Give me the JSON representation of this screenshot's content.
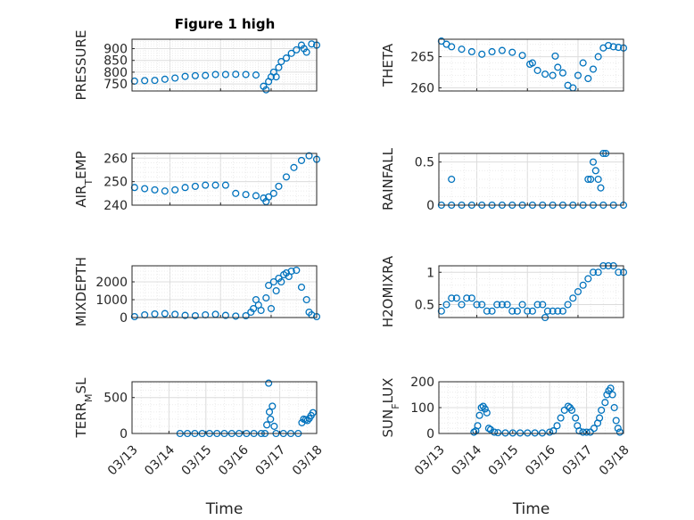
{
  "figure": {
    "title": "Figure 1 high"
  },
  "colors": {
    "marker": "#0072BD",
    "axis": "#262626",
    "grid_major": "#dcdcdc",
    "grid_minor": "#ececec"
  },
  "chart_data": [
    {
      "type": "scatter",
      "ylabel": "PRESSURE",
      "xlabel": "",
      "grid": true,
      "minor_grid": true,
      "xlim": [
        "03/13",
        "03/18"
      ],
      "ylim": [
        720,
        940
      ],
      "yticks": [
        750,
        800,
        850,
        900
      ],
      "x_ticklabels": [],
      "x_range_days": [
        1.25,
        4.9
      ],
      "x": [
        1.3,
        1.5,
        1.7,
        1.9,
        2.1,
        2.3,
        2.5,
        2.7,
        2.9,
        3.1,
        3.3,
        3.5,
        3.7,
        3.85,
        3.9,
        3.95,
        4.0,
        4.05,
        4.1,
        4.15,
        4.2,
        4.3,
        4.4,
        4.5,
        4.6,
        4.65,
        4.7,
        4.8,
        4.9
      ],
      "y": [
        762,
        764,
        765,
        770,
        775,
        782,
        785,
        786,
        790,
        790,
        791,
        790,
        788,
        740,
        725,
        760,
        780,
        800,
        780,
        820,
        845,
        860,
        880,
        895,
        915,
        900,
        885,
        920,
        915
      ]
    },
    {
      "type": "scatter",
      "ylabel": "THETA",
      "xlabel": "",
      "grid": true,
      "minor_grid": true,
      "xlim": [
        "03/13",
        "03/18"
      ],
      "ylim": [
        259.5,
        267.8
      ],
      "yticks": [
        260,
        265
      ],
      "x_ticklabels": [],
      "x_range_days": [
        1.25,
        4.9
      ],
      "x": [
        1.3,
        1.4,
        1.5,
        1.7,
        1.9,
        2.1,
        2.3,
        2.5,
        2.7,
        2.9,
        3.05,
        3.1,
        3.2,
        3.35,
        3.5,
        3.55,
        3.6,
        3.7,
        3.8,
        3.9,
        4.0,
        4.1,
        4.2,
        4.3,
        4.4,
        4.5,
        4.6,
        4.7,
        4.8,
        4.9
      ],
      "y": [
        267.5,
        267.0,
        266.6,
        266.2,
        265.8,
        265.4,
        265.8,
        266.0,
        265.7,
        265.2,
        263.8,
        264.0,
        262.8,
        262.2,
        262.0,
        265.1,
        263.3,
        262.4,
        260.4,
        260.0,
        262.0,
        264.0,
        261.5,
        263.0,
        265.0,
        266.4,
        266.8,
        266.6,
        266.5,
        266.4
      ]
    },
    {
      "type": "scatter",
      "ylabel": "AIR_TEMP",
      "xlabel": "",
      "grid": true,
      "minor_grid": true,
      "xlim": [
        "03/13",
        "03/18"
      ],
      "ylim": [
        240,
        262
      ],
      "yticks": [
        240,
        250,
        260
      ],
      "x_ticklabels": [],
      "x_range_days": [
        1.25,
        4.9
      ],
      "x": [
        1.3,
        1.5,
        1.7,
        1.9,
        2.1,
        2.3,
        2.5,
        2.7,
        2.9,
        3.1,
        3.3,
        3.5,
        3.7,
        3.85,
        3.9,
        3.95,
        4.05,
        4.15,
        4.3,
        4.45,
        4.6,
        4.75,
        4.9
      ],
      "y": [
        247.5,
        247,
        246.5,
        246,
        246.5,
        247.5,
        248,
        248.5,
        248.5,
        248.5,
        245,
        244.5,
        244,
        243,
        241.5,
        243.5,
        245,
        248,
        252,
        256,
        259,
        261,
        259.5
      ]
    },
    {
      "type": "scatter",
      "ylabel": "RAINFALL",
      "xlabel": "",
      "grid": true,
      "minor_grid": true,
      "xlim": [
        "03/13",
        "03/18"
      ],
      "ylim": [
        0,
        0.6
      ],
      "yticks": [
        0,
        0.5
      ],
      "x_ticklabels": [],
      "x_range_days": [
        1.25,
        4.9
      ],
      "x": [
        1.3,
        1.5,
        1.7,
        1.9,
        2.1,
        2.3,
        2.5,
        2.7,
        2.9,
        3.1,
        3.3,
        3.5,
        3.7,
        3.9,
        4.1,
        4.3,
        4.5,
        4.7,
        4.9,
        1.5,
        4.2,
        4.25,
        4.3,
        4.35,
        4.4,
        4.45,
        4.5,
        4.55
      ],
      "y": [
        0,
        0,
        0,
        0,
        0,
        0,
        0,
        0,
        0,
        0,
        0,
        0,
        0,
        0,
        0,
        0,
        0,
        0,
        0,
        0.3,
        0.3,
        0.3,
        0.5,
        0.4,
        0.3,
        0.2,
        0.6,
        0.6
      ]
    },
    {
      "type": "scatter",
      "ylabel": "MIXDEPTH",
      "xlabel": "",
      "grid": true,
      "minor_grid": true,
      "xlim": [
        "03/13",
        "03/18"
      ],
      "ylim": [
        0,
        2900
      ],
      "yticks": [
        0,
        1000,
        2000
      ],
      "x_ticklabels": [],
      "x_range_days": [
        1.25,
        4.9
      ],
      "x": [
        1.3,
        1.5,
        1.7,
        1.9,
        2.1,
        2.3,
        2.5,
        2.7,
        2.9,
        3.1,
        3.3,
        3.5,
        3.6,
        3.65,
        3.7,
        3.75,
        3.8,
        3.9,
        3.95,
        4.0,
        4.05,
        4.1,
        4.15,
        4.2,
        4.25,
        4.3,
        4.35,
        4.4,
        4.5,
        4.6,
        4.7,
        4.75,
        4.8,
        4.9
      ],
      "y": [
        50,
        150,
        200,
        220,
        180,
        120,
        100,
        150,
        180,
        120,
        80,
        100,
        300,
        500,
        1000,
        700,
        400,
        1100,
        1800,
        500,
        2000,
        1500,
        2200,
        2000,
        2400,
        2500,
        2300,
        2600,
        2650,
        1700,
        1000,
        300,
        150,
        50
      ]
    },
    {
      "type": "scatter",
      "ylabel": "H2OMIXRA",
      "xlabel": "",
      "grid": true,
      "minor_grid": true,
      "xlim": [
        "03/13",
        "03/18"
      ],
      "ylim": [
        0.3,
        1.1
      ],
      "yticks": [
        0.5,
        1
      ],
      "x_ticklabels": [],
      "x_range_days": [
        1.25,
        4.9
      ],
      "x": [
        1.3,
        1.4,
        1.5,
        1.6,
        1.7,
        1.8,
        1.9,
        2.0,
        2.1,
        2.2,
        2.3,
        2.4,
        2.5,
        2.6,
        2.7,
        2.8,
        2.9,
        3.0,
        3.1,
        3.2,
        3.3,
        3.35,
        3.4,
        3.5,
        3.6,
        3.7,
        3.8,
        3.9,
        4.0,
        4.1,
        4.2,
        4.3,
        4.4,
        4.5,
        4.6,
        4.7,
        4.8,
        4.9
      ],
      "y": [
        0.4,
        0.5,
        0.6,
        0.6,
        0.5,
        0.6,
        0.6,
        0.5,
        0.5,
        0.4,
        0.4,
        0.5,
        0.5,
        0.5,
        0.4,
        0.4,
        0.5,
        0.4,
        0.4,
        0.5,
        0.5,
        0.3,
        0.4,
        0.4,
        0.4,
        0.4,
        0.5,
        0.6,
        0.7,
        0.8,
        0.9,
        1.0,
        1.0,
        1.1,
        1.1,
        1.1,
        1.0,
        1.0
      ]
    },
    {
      "type": "scatter",
      "ylabel": "TERR_MSL",
      "xlabel": "Time",
      "grid": true,
      "minor_grid": true,
      "xlim": [
        "03/13",
        "03/18"
      ],
      "ylim": [
        0,
        720
      ],
      "yticks": [
        0,
        500
      ],
      "x_ticklabels": [
        "03/13",
        "03/14",
        "03/15",
        "03/16",
        "03/17",
        "03/18"
      ],
      "x_range_days": [
        0,
        5
      ],
      "x": [
        1.3,
        1.5,
        1.7,
        1.9,
        2.1,
        2.3,
        2.5,
        2.7,
        2.9,
        3.1,
        3.3,
        3.5,
        3.6,
        3.65,
        3.7,
        3.72,
        3.75,
        3.8,
        3.85,
        3.9,
        4.1,
        4.3,
        4.5,
        4.6,
        4.65,
        4.7,
        4.75,
        4.8,
        4.85,
        4.9
      ],
      "y": [
        0,
        0,
        0,
        0,
        0,
        0,
        0,
        0,
        0,
        0,
        0,
        0,
        0,
        120,
        700,
        300,
        200,
        380,
        100,
        0,
        0,
        0,
        0,
        150,
        200,
        190,
        180,
        210,
        250,
        290
      ]
    },
    {
      "type": "scatter",
      "ylabel": "SUN_FLUX",
      "xlabel": "Time",
      "grid": true,
      "minor_grid": true,
      "xlim": [
        "03/13",
        "03/18"
      ],
      "ylim": [
        0,
        200
      ],
      "yticks": [
        0,
        100,
        200
      ],
      "x_ticklabels": [
        "03/13",
        "03/14",
        "03/15",
        "03/16",
        "03/17",
        "03/18"
      ],
      "x_range_days": [
        0,
        5
      ],
      "x": [
        0.95,
        1.0,
        1.05,
        1.1,
        1.15,
        1.2,
        1.25,
        1.3,
        1.35,
        1.4,
        1.5,
        1.6,
        1.8,
        2.0,
        2.2,
        2.4,
        2.6,
        2.8,
        3.0,
        3.1,
        3.2,
        3.3,
        3.4,
        3.5,
        3.55,
        3.6,
        3.7,
        3.75,
        3.8,
        3.9,
        4.0,
        4.1,
        4.2,
        4.3,
        4.35,
        4.4,
        4.5,
        4.55,
        4.6,
        4.65,
        4.7,
        4.75,
        4.8,
        4.85,
        4.9
      ],
      "y": [
        5,
        10,
        30,
        70,
        100,
        105,
        95,
        80,
        20,
        15,
        5,
        3,
        2,
        2,
        2,
        2,
        2,
        2,
        5,
        10,
        30,
        60,
        90,
        105,
        100,
        90,
        60,
        30,
        10,
        5,
        5,
        5,
        20,
        40,
        60,
        90,
        120,
        150,
        165,
        175,
        150,
        100,
        50,
        20,
        5
      ]
    }
  ]
}
